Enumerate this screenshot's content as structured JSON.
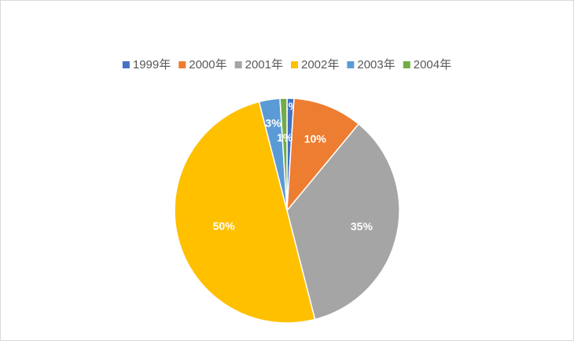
{
  "chart_data": {
    "type": "pie",
    "categories": [
      "1999年",
      "2000年",
      "2001年",
      "2002年",
      "2003年",
      "2004年"
    ],
    "values": [
      1,
      10,
      35,
      50,
      3,
      1
    ],
    "value_labels": [
      "1%",
      "10%",
      "35%",
      "50%",
      "3%",
      "1%"
    ],
    "colors": [
      "#4472c4",
      "#ed7d31",
      "#a5a5a5",
      "#ffc000",
      "#5b9bd5",
      "#70ad47"
    ],
    "legend": "top"
  }
}
